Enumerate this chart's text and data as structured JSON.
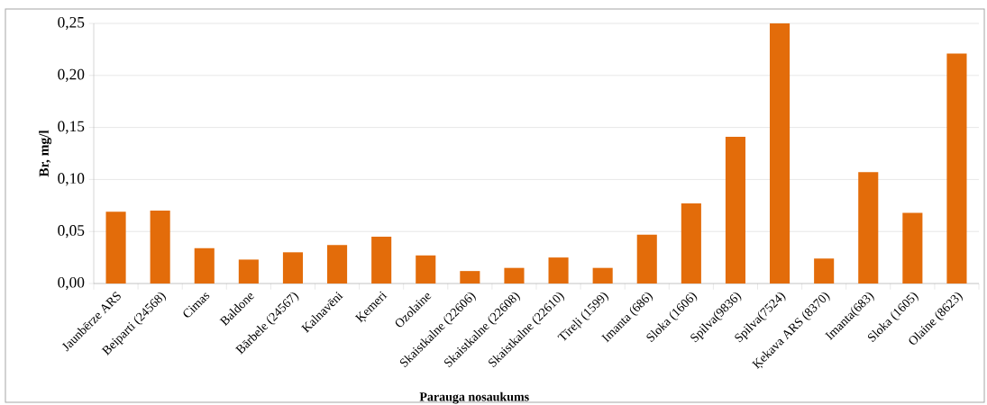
{
  "chart_data": {
    "type": "bar",
    "xlabel": "Parauga nosaukums",
    "ylabel": "Br, mg/l",
    "categories": [
      "Jaunbērze ARS",
      "Beiparti (24568)",
      "Cimas",
      "Baldone",
      "Bārbele (24567)",
      "Kalnavēni",
      "Ķemeri",
      "Ozolaine",
      "Skaistkalne (22606)",
      "Skaistkalne (22608)",
      "Skaistkalne (22610)",
      "Tīreļi (1599)",
      "Imanta (686)",
      "Sloka (1606)",
      "Spilva(9836)",
      "Spilva(7524)",
      "Ķekava ARS (8370)",
      "Imanta(683)",
      "Sloka (1605)",
      "Olaine (8623)"
    ],
    "values": [
      0.069,
      0.07,
      0.034,
      0.023,
      0.03,
      0.037,
      0.045,
      0.027,
      0.012,
      0.015,
      0.025,
      0.015,
      0.047,
      0.077,
      0.141,
      0.25,
      0.024,
      0.107,
      0.068,
      0.221
    ],
    "color": "#e36c0a",
    "ylim": [
      0,
      0.25
    ],
    "yticks": [
      {
        "value": 0,
        "label": "0,00"
      },
      {
        "value": 0.05,
        "label": "0,05"
      },
      {
        "value": 0.1,
        "label": "0,10"
      },
      {
        "value": 0.15,
        "label": "0,15"
      },
      {
        "value": 0.2,
        "label": "0,20"
      },
      {
        "value": 0.25,
        "label": "0,25"
      }
    ],
    "grid": "y"
  }
}
